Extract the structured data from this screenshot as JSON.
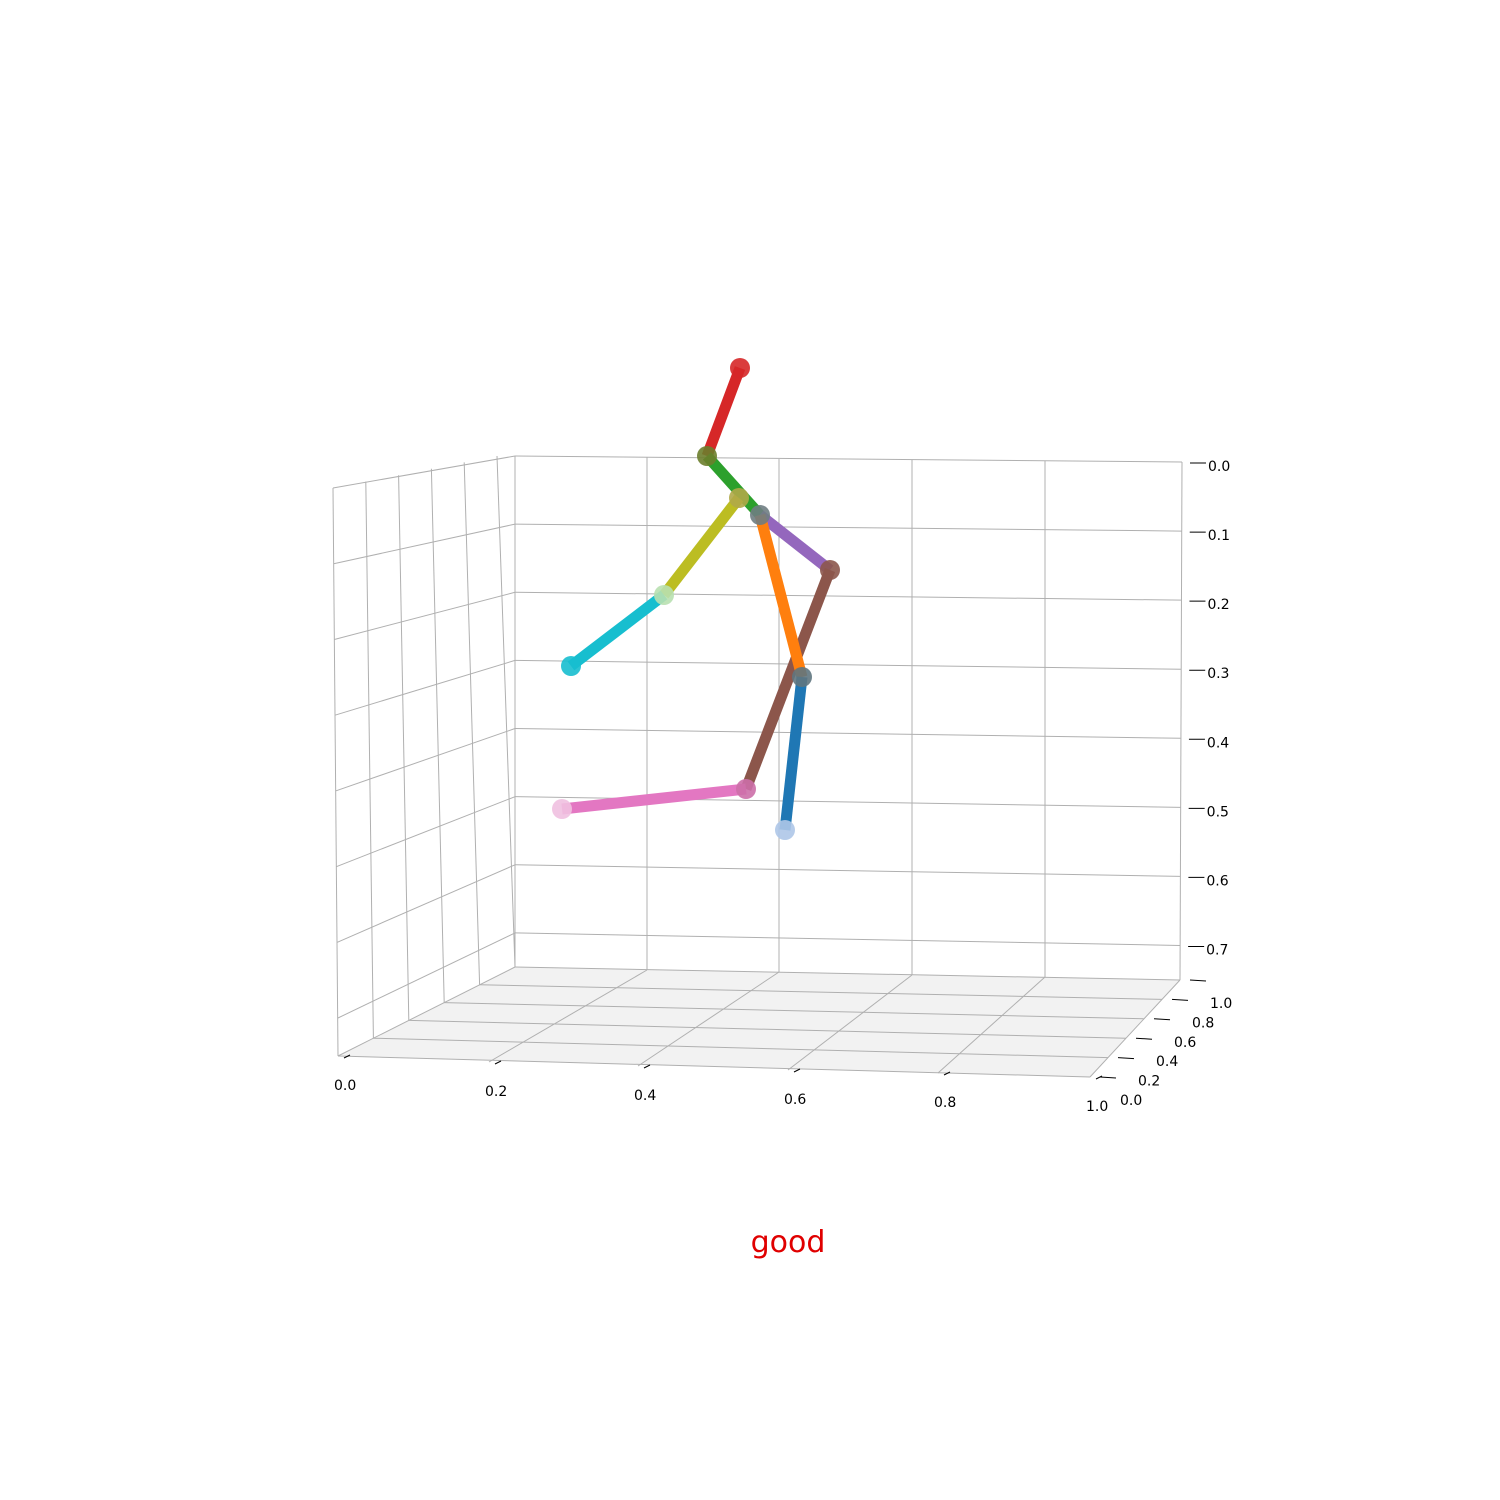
{
  "chart_data": {
    "type": "3d-line",
    "caption": "good",
    "caption_color": "#e00000",
    "axes": {
      "x": {
        "range": [
          0,
          1
        ],
        "ticks": [
          "0.0",
          "0.2",
          "0.4",
          "0.6",
          "0.8",
          "1.0"
        ]
      },
      "y": {
        "range": [
          0,
          1
        ],
        "ticks": [
          "0.0",
          "0.2",
          "0.4",
          "0.6",
          "0.8",
          "1.0"
        ]
      },
      "z": {
        "range": [
          0,
          0.75
        ],
        "inverted": true,
        "ticks": [
          "0.0",
          "0.1",
          "0.2",
          "0.3",
          "0.4",
          "0.5",
          "0.6",
          "0.7"
        ]
      },
      "grid": true,
      "floor_color": "#f2f2f2"
    },
    "joints": [
      {
        "name": "head",
        "x": 0.48,
        "y": 0.0,
        "z": -0.12,
        "color": "#d62728"
      },
      {
        "name": "neck",
        "x": 0.42,
        "y": 0.0,
        "z": 0.0,
        "color": "#6b7e2c"
      },
      {
        "name": "spine",
        "x": 0.46,
        "y": 0.0,
        "z": 0.06,
        "color": "#b0a848"
      },
      {
        "name": "hip-center",
        "x": 0.49,
        "y": 0.0,
        "z": 0.08,
        "color": "#6f7d82"
      },
      {
        "name": "hip-right",
        "x": 0.59,
        "y": 0.0,
        "z": 0.16,
        "color": "#8c564b"
      },
      {
        "name": "knee-upper",
        "x": 0.55,
        "y": 0.0,
        "z": 0.32,
        "color": "#5f7580"
      },
      {
        "name": "ankle",
        "x": 0.52,
        "y": 0.0,
        "z": 0.56,
        "color": "#aec7e8"
      },
      {
        "name": "knee-lower",
        "x": 0.47,
        "y": 0.0,
        "z": 0.5,
        "color": "#cc6fa9"
      },
      {
        "name": "foot",
        "x": 0.1,
        "y": 0.0,
        "z": 0.53,
        "color": "#f0c0e0"
      },
      {
        "name": "elbow",
        "x": 0.3,
        "y": 0.0,
        "z": 0.2,
        "color": "#b8e0b0"
      },
      {
        "name": "hand",
        "x": 0.1,
        "y": 0.0,
        "z": 0.31,
        "color": "#17becf"
      }
    ],
    "bones": [
      {
        "from": "head",
        "to": "neck",
        "color": "#d62728"
      },
      {
        "from": "neck",
        "to": "hip-center",
        "color": "#2ca02c"
      },
      {
        "from": "hip-center",
        "to": "hip-right",
        "color": "#9467bd"
      },
      {
        "from": "hip-right",
        "to": "knee-lower",
        "color": "#8c564b"
      },
      {
        "from": "hip-center",
        "to": "knee-upper",
        "color": "#ff7f0e"
      },
      {
        "from": "knee-upper",
        "to": "ankle",
        "color": "#1f77b4"
      },
      {
        "from": "knee-lower",
        "to": "foot",
        "color": "#e377c2"
      },
      {
        "from": "spine",
        "to": "elbow",
        "color": "#bcbd22"
      },
      {
        "from": "elbow",
        "to": "hand",
        "color": "#17becf"
      }
    ]
  }
}
